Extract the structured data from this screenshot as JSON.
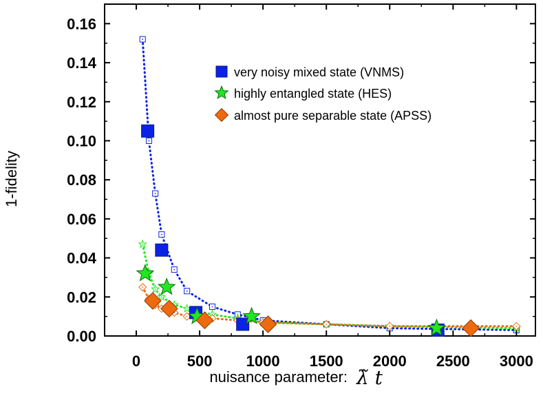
{
  "chart_data": {
    "type": "scatter",
    "xlabel": "nuisance parameter:",
    "xlabel_symbol": "λ̃ t",
    "ylabel": "1-fidelity",
    "xlim": [
      -250,
      3150
    ],
    "ylim": [
      0,
      0.17
    ],
    "x_ticks": [
      0,
      500,
      1000,
      1500,
      2000,
      2500,
      3000
    ],
    "x_tick_labels": [
      "0",
      "500",
      "1000",
      "1500",
      "2000",
      "2500",
      "3000"
    ],
    "y_ticks": [
      0.0,
      0.02,
      0.04,
      0.06,
      0.08,
      0.1,
      0.12,
      0.14,
      0.16
    ],
    "y_tick_labels": [
      "0.00",
      "0.02",
      "0.04",
      "0.06",
      "0.08",
      "0.10",
      "0.12",
      "0.14",
      "0.16"
    ],
    "grid": false,
    "legend_position": "top-right",
    "series": [
      {
        "name": "very noisy mixed state (VNMS)",
        "color": "#0a22e6",
        "marker": "square",
        "points": [
          [
            90,
            0.105
          ],
          [
            200,
            0.044
          ],
          [
            470,
            0.012
          ],
          [
            840,
            0.006
          ],
          [
            2380,
            0.003
          ]
        ],
        "curve": [
          [
            50,
            0.152
          ],
          [
            100,
            0.1
          ],
          [
            150,
            0.073
          ],
          [
            200,
            0.052
          ],
          [
            300,
            0.034
          ],
          [
            400,
            0.023
          ],
          [
            600,
            0.015
          ],
          [
            800,
            0.011
          ],
          [
            1000,
            0.008
          ],
          [
            1500,
            0.006
          ],
          [
            2000,
            0.004
          ],
          [
            3000,
            0.003
          ]
        ]
      },
      {
        "name": "highly entangled state (HES)",
        "color": "#22e622",
        "marker": "star",
        "points": [
          [
            70,
            0.032
          ],
          [
            240,
            0.025
          ],
          [
            480,
            0.01
          ],
          [
            910,
            0.01
          ],
          [
            2370,
            0.004
          ]
        ],
        "curve": [
          [
            50,
            0.047
          ],
          [
            100,
            0.032
          ],
          [
            150,
            0.024
          ],
          [
            200,
            0.02
          ],
          [
            300,
            0.016
          ],
          [
            400,
            0.014
          ],
          [
            600,
            0.011
          ],
          [
            800,
            0.009
          ],
          [
            1000,
            0.007
          ],
          [
            1500,
            0.006
          ],
          [
            2000,
            0.005
          ],
          [
            3000,
            0.004
          ]
        ]
      },
      {
        "name": "almost pure separable state (APSS)",
        "color": "#ee6a10",
        "marker": "diamond",
        "points": [
          [
            130,
            0.018
          ],
          [
            260,
            0.014
          ],
          [
            540,
            0.008
          ],
          [
            1040,
            0.006
          ],
          [
            2640,
            0.004
          ]
        ],
        "curve": [
          [
            50,
            0.025
          ],
          [
            100,
            0.019
          ],
          [
            150,
            0.016
          ],
          [
            200,
            0.014
          ],
          [
            300,
            0.012
          ],
          [
            400,
            0.01
          ],
          [
            600,
            0.009
          ],
          [
            800,
            0.008
          ],
          [
            1000,
            0.007
          ],
          [
            1500,
            0.006
          ],
          [
            2000,
            0.005
          ],
          [
            3000,
            0.005
          ]
        ]
      }
    ]
  }
}
